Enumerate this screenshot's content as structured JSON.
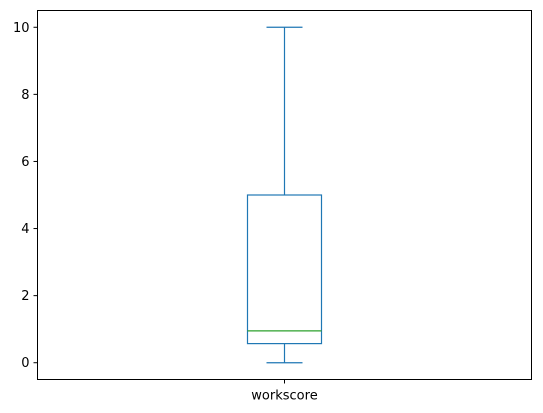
{
  "chart_data": {
    "type": "box",
    "categories": [
      "workscore"
    ],
    "boxes": [
      {
        "category": "workscore",
        "whisker_low": 0,
        "q1": 0.57,
        "median": 0.95,
        "q3": 5.0,
        "whisker_high": 10.0
      }
    ],
    "title": "",
    "xlabel": "",
    "ylabel": "",
    "ylim": [
      -0.5,
      10.5
    ],
    "yticks": [
      0,
      2,
      4,
      6,
      8,
      10
    ],
    "ytick_labels": [
      "0",
      "2",
      "4",
      "6",
      "8",
      "10"
    ],
    "grid": false,
    "legend": "none",
    "colors": {
      "box": "#1f77b4",
      "median": "#2ca02c",
      "axes": "#000000"
    }
  }
}
